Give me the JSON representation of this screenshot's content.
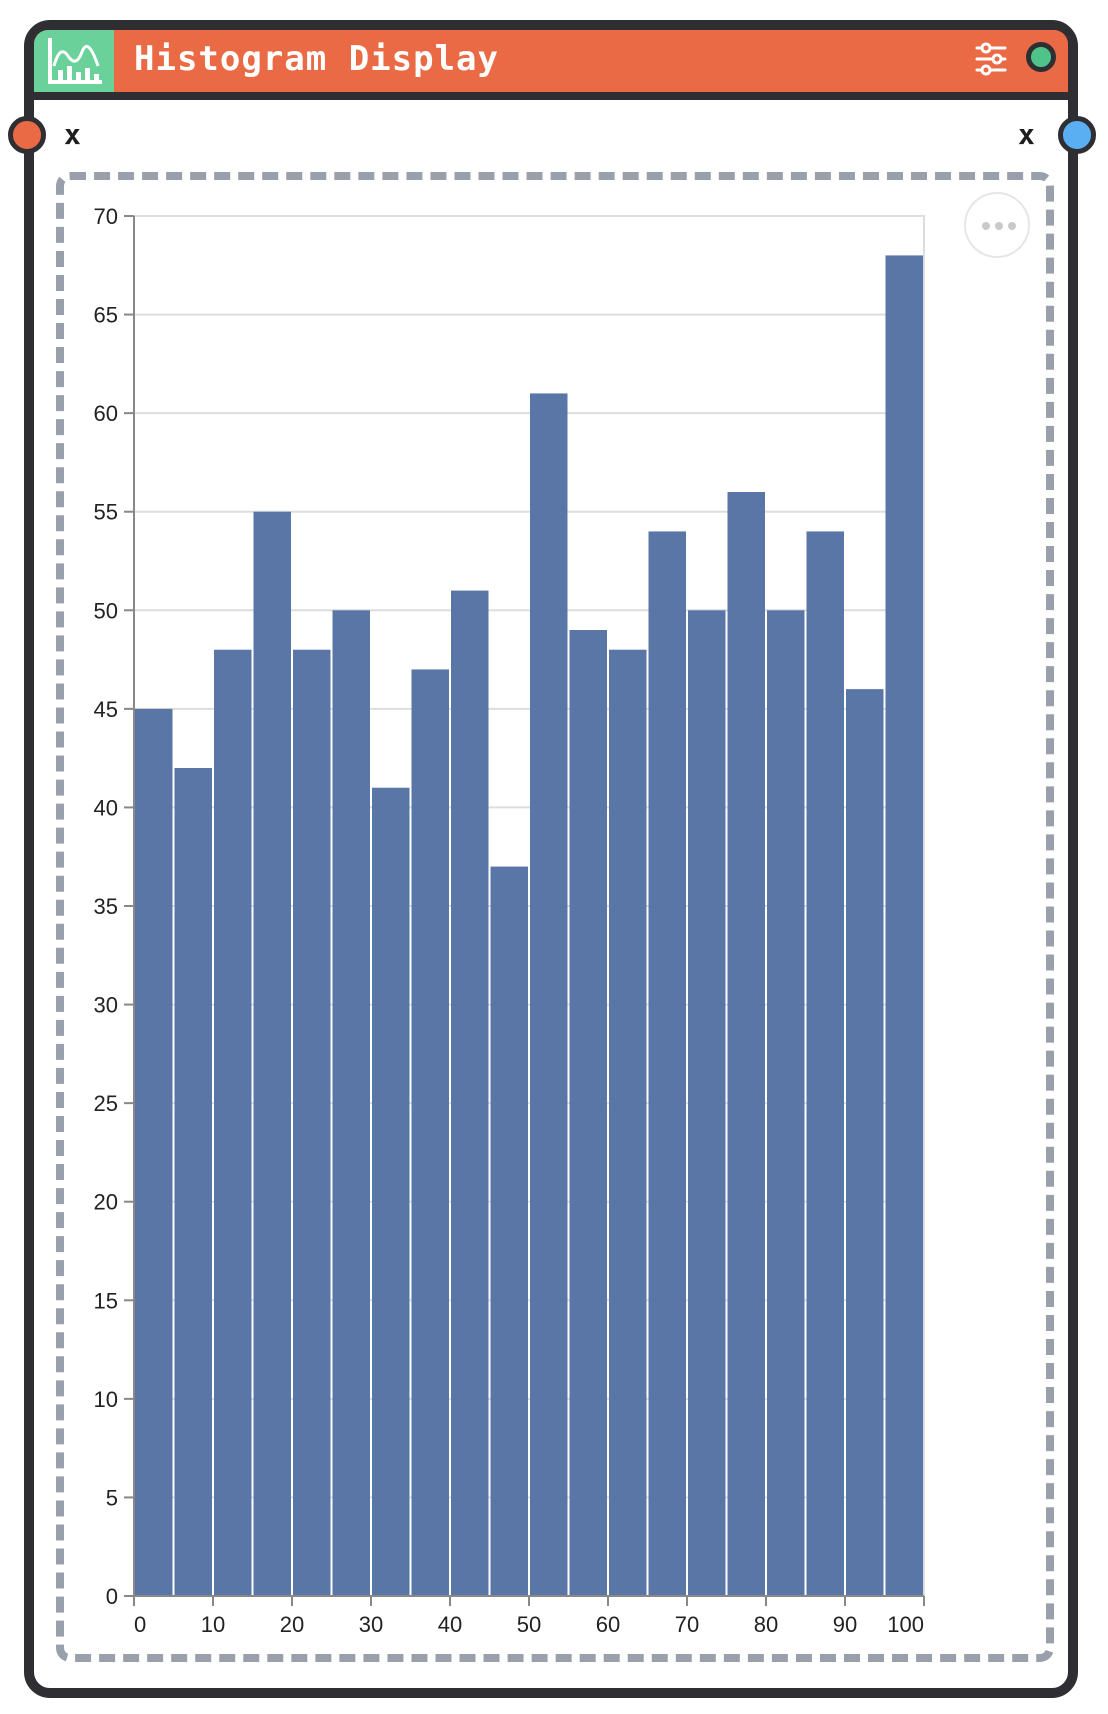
{
  "node": {
    "title": "Histogram Display",
    "icon": "histogram-chart-icon",
    "settings_icon": "sliders-icon",
    "status_color": "#4fc48a",
    "header_color": "#e96a44",
    "icon_box_color": "#6ad19a"
  },
  "ports": {
    "input_label": "x",
    "output_label": "x",
    "input_color": "#e96a44",
    "output_color": "#5aaef2"
  },
  "chart_menu": {
    "icon": "more-horizontal-icon"
  },
  "chart_data": {
    "type": "bar",
    "bar_color": "#5976a6",
    "x_bin_edges": [
      0,
      5,
      10,
      15,
      20,
      25,
      30,
      35,
      40,
      45,
      50,
      55,
      60,
      65,
      70,
      75,
      80,
      85,
      90,
      95,
      100
    ],
    "values": [
      45,
      42,
      48,
      55,
      48,
      50,
      41,
      47,
      51,
      37,
      61,
      49,
      48,
      54,
      50,
      56,
      50,
      54,
      46,
      68
    ],
    "x_tick_labels": [
      "0",
      "10",
      "20",
      "30",
      "40",
      "50",
      "60",
      "70",
      "80",
      "90",
      "100"
    ],
    "x_tick_values": [
      0,
      10,
      20,
      30,
      40,
      50,
      60,
      70,
      80,
      90,
      100
    ],
    "y_ticks": [
      0,
      5,
      10,
      15,
      20,
      25,
      30,
      35,
      40,
      45,
      50,
      55,
      60,
      65,
      70
    ],
    "ylim": [
      0,
      70
    ],
    "xlim": [
      0,
      100
    ],
    "grid": true
  }
}
